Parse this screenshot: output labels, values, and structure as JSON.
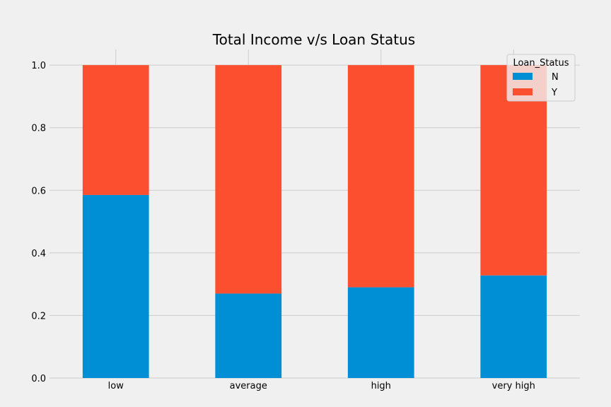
{
  "chart_data": {
    "type": "bar",
    "stacked": true,
    "title": "Total Income v/s Loan Status",
    "xlabel": "",
    "ylabel": "",
    "categories": [
      "low",
      "average",
      "high",
      "very high"
    ],
    "series": [
      {
        "name": "N",
        "values": [
          0.585,
          0.27,
          0.29,
          0.328
        ],
        "color": "#008fd5"
      },
      {
        "name": "Y",
        "values": [
          0.415,
          0.73,
          0.71,
          0.672
        ],
        "color": "#fc4f30"
      }
    ],
    "ylim": [
      0,
      1.05
    ],
    "yticks": [
      "0.0",
      "0.2",
      "0.4",
      "0.6",
      "0.8",
      "1.0"
    ],
    "ytick_values": [
      0,
      0.2,
      0.4,
      0.6,
      0.8,
      1.0
    ],
    "grid": true,
    "legend": {
      "title": "Loan_Status",
      "placement": "top-right"
    }
  },
  "colors": {
    "background": "#f0f0f0",
    "grid": "#cbcbcb"
  }
}
